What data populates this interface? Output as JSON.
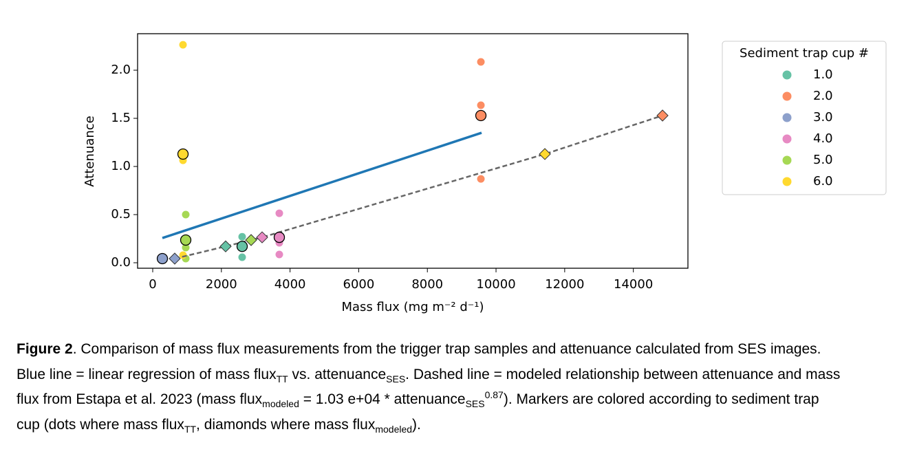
{
  "chart_data": {
    "type": "scatter",
    "x_label": "Mass flux (mg m⁻² d⁻¹)",
    "y_label": "Attenuance",
    "xlim": [
      -441,
      15590
    ],
    "ylim": [
      -0.057,
      2.379
    ],
    "xticks": [
      0,
      2000,
      4000,
      6000,
      8000,
      10000,
      12000,
      14000
    ],
    "yticks": [
      {
        "value": 0,
        "label": "0.0"
      },
      {
        "value": 0.5,
        "label": "0.5"
      },
      {
        "value": 1,
        "label": "1.0"
      },
      {
        "value": 1.5,
        "label": "1.5"
      },
      {
        "value": 2,
        "label": "2.0"
      }
    ],
    "legend_title": "Sediment trap cup #",
    "legend_loc": "outside right",
    "series": [
      {
        "name": "1.0",
        "color": "#66c2a5",
        "x": [
          2605,
          2605
        ],
        "y": [
          0.27,
          0.057
        ],
        "mean_x": 2605,
        "mean_y": 0.17,
        "modeled_x": 2124
      },
      {
        "name": "2.0",
        "color": "#fc8d62",
        "x": [
          9559,
          9559,
          9559
        ],
        "y": [
          2.086,
          1.636,
          0.871
        ],
        "mean_x": 9559,
        "mean_y": 1.529,
        "modeled_x": 14850
      },
      {
        "name": "3.0",
        "color": "#8da0cb",
        "x": [
          281
        ],
        "y": [
          0.043
        ],
        "mean_x": 281,
        "mean_y": 0.043,
        "modeled_x": 641
      },
      {
        "name": "4.0",
        "color": "#e78ac3",
        "x": [
          3687,
          3687,
          3687
        ],
        "y": [
          0.514,
          0.207,
          0.086
        ],
        "mean_x": 3687,
        "mean_y": 0.264,
        "modeled_x": 3186
      },
      {
        "name": "5.0",
        "color": "#a6d854",
        "x": [
          962,
          962,
          962
        ],
        "y": [
          0.5,
          0.157,
          0.043
        ],
        "mean_x": 962,
        "mean_y": 0.236,
        "modeled_x": 2866
      },
      {
        "name": "6.0",
        "color": "#ffd92f",
        "x": [
          882,
          882,
          882
        ],
        "y": [
          2.264,
          1.064,
          0.079
        ],
        "mean_x": 882,
        "mean_y": 1.129,
        "modeled_x": 11423
      }
    ],
    "regression": {
      "color": "#1f77b4",
      "x": [
        281,
        9579
      ],
      "y": [
        0.257,
        1.35
      ]
    },
    "model_curve": {
      "color": "#666666",
      "x": [
        641,
        2124,
        2866,
        3186,
        11423,
        14850
      ],
      "y": [
        0.043,
        0.17,
        0.236,
        0.264,
        1.129,
        1.529
      ]
    }
  },
  "caption": [
    {
      "b": "Figure 2"
    },
    {
      "t": ". Comparison of mass flux measurements from the trigger trap samples and attenuance calculated from SES images. Blue line = linear regression of mass flux"
    },
    {
      "sub": "TT"
    },
    {
      "t": " vs. attenuance"
    },
    {
      "sub": "SES"
    },
    {
      "t": ". Dashed line = modeled relationship between attenuance and mass flux from Estapa et al. 2023 (mass flux"
    },
    {
      "sub": "modeled"
    },
    {
      "t": " = 1.03 e+04 * attenuance"
    },
    {
      "sub": "SES"
    },
    {
      "sup": "0.87"
    },
    {
      "t": "). Markers are colored according to sediment trap cup (dots where mass flux"
    },
    {
      "sub": "TT"
    },
    {
      "t": ", diamonds where mass flux"
    },
    {
      "sub": "modeled"
    },
    {
      "t": ")."
    }
  ]
}
